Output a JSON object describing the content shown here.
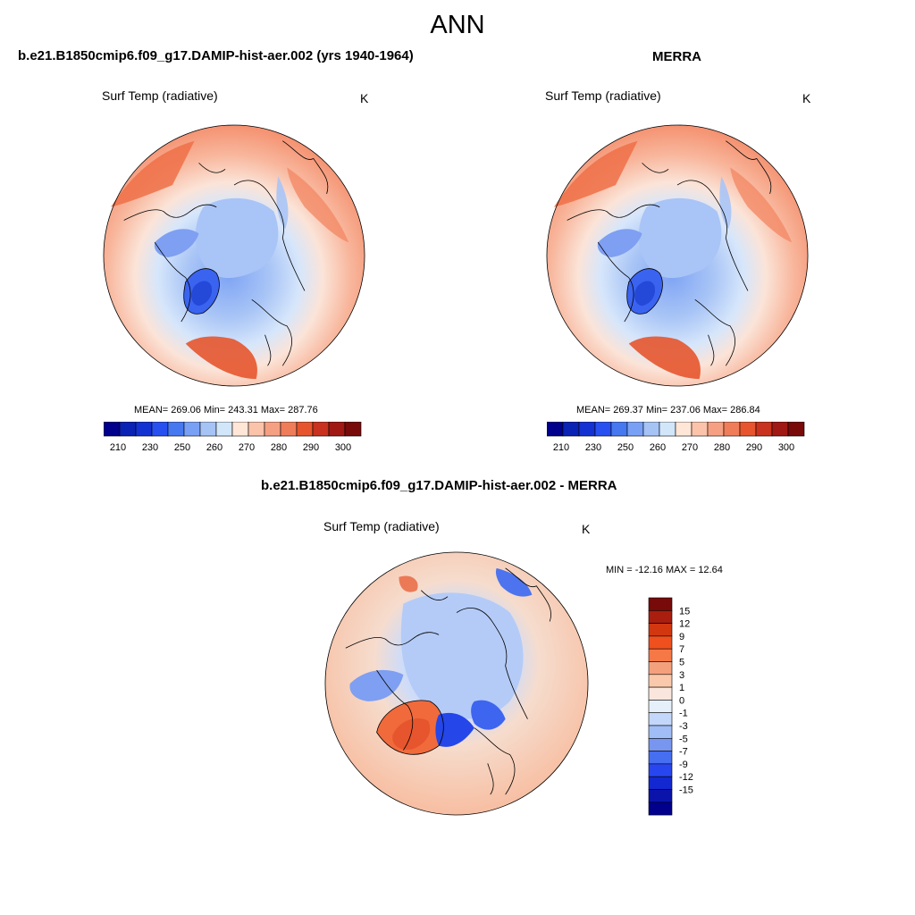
{
  "figure": {
    "season": "ANN",
    "color_hex": {
      "ocean_warm": "#f59070",
      "land_cold": "#3a63f0",
      "coast": "#000000"
    }
  },
  "left_panel": {
    "title": "b.e21.B1850cmip6.f09_g17.DAMIP-hist-aer.002 (yrs 1940-1964)",
    "variable": "Surf Temp (radiative)",
    "units": "K",
    "stats_text": "MEAN= 269.06  Min= 243.31  Max= 287.76"
  },
  "right_panel": {
    "title": "MERRA",
    "variable": "Surf Temp (radiative)",
    "units": "K",
    "stats_text": "MEAN= 269.37  Min= 237.06  Max= 286.84"
  },
  "diff_panel": {
    "title": "b.e21.B1850cmip6.f09_g17.DAMIP-hist-aer.002 - MERRA",
    "variable": "Surf Temp (radiative)",
    "units": "K",
    "stats_text": "MIN = -12.16 MAX =  12.64"
  },
  "abs_colorbar": {
    "colors": [
      "#00008c",
      "#0a23b4",
      "#1432d2",
      "#2850f0",
      "#4678f0",
      "#78a0f5",
      "#a5c3f5",
      "#d2e6fa",
      "#ffe6d7",
      "#fac3aa",
      "#f5a082",
      "#f07d5a",
      "#e6552d",
      "#c8321e",
      "#a01914",
      "#780a0a"
    ],
    "tick_labels": [
      "210",
      "230",
      "250",
      "260",
      "270",
      "280",
      "290",
      "300"
    ]
  },
  "diff_colorbar": {
    "colors_top_to_bottom": [
      "#780a0a",
      "#aa1e0f",
      "#d2370f",
      "#f0501e",
      "#f57846",
      "#f5a07d",
      "#fac8aa",
      "#fae6dc",
      "#e6f0fa",
      "#c3d7fa",
      "#a0bef5",
      "#7896f0",
      "#466ef0",
      "#2846f0",
      "#1428d2",
      "#0a14aa",
      "#00008c"
    ],
    "tick_labels": [
      "15",
      "12",
      "9",
      "7",
      "5",
      "3",
      "1",
      "0",
      "-1",
      "-3",
      "-5",
      "-7",
      "-9",
      "-12",
      "-15"
    ]
  }
}
